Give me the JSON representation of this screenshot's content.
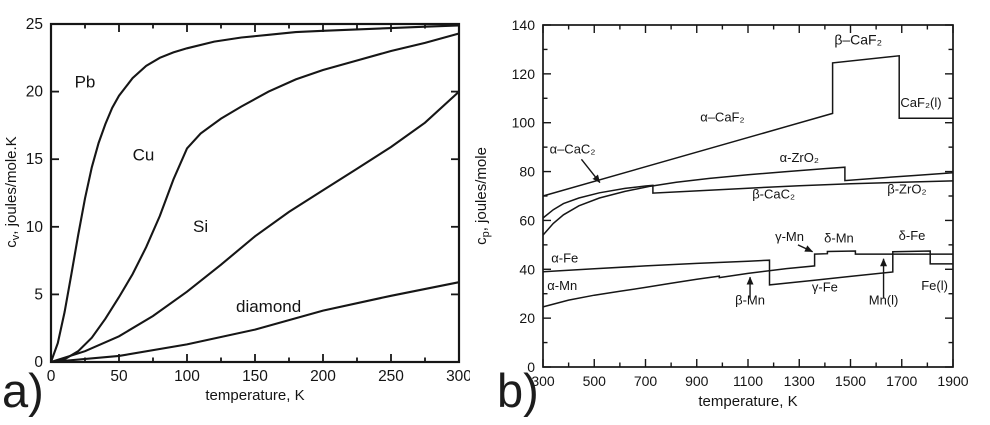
{
  "figure": {
    "background": "#ffffff",
    "ink_color": "#141414"
  },
  "panel_labels": {
    "a": "a)",
    "b": "b)"
  },
  "chart_data": [
    {
      "type": "line",
      "panel": "a",
      "title": "",
      "xlabel": "temperature, K",
      "ylabel": "cv, joules/mole.K",
      "ylabel_sym": "c",
      "ylabel_sub": "v",
      "ylabel_rest": ", joules/mole.K",
      "xlim": [
        0,
        300
      ],
      "ylim": [
        0,
        25
      ],
      "xticks": [
        0,
        50,
        100,
        150,
        200,
        250,
        300
      ],
      "x_minor": 25,
      "yticks": [
        0,
        5,
        10,
        15,
        20,
        25
      ],
      "y_minor": 0,
      "grid": false,
      "legend": "labels-on-curves",
      "line_color": "#161616",
      "frame_w": 2.2,
      "series_w": 2.1,
      "tick_w": 1.8,
      "tick_fs": 15.5,
      "ann_fs": 17,
      "series": [
        {
          "name": "Pb",
          "points": [
            [
              0,
              0
            ],
            [
              5,
              1.4
            ],
            [
              10,
              3.7
            ],
            [
              15,
              6.5
            ],
            [
              20,
              9.4
            ],
            [
              25,
              12.1
            ],
            [
              30,
              14.4
            ],
            [
              35,
              16.2
            ],
            [
              40,
              17.6
            ],
            [
              45,
              18.8
            ],
            [
              50,
              19.7
            ],
            [
              60,
              21.0
            ],
            [
              70,
              21.9
            ],
            [
              80,
              22.5
            ],
            [
              90,
              22.9
            ],
            [
              100,
              23.2
            ],
            [
              120,
              23.7
            ],
            [
              140,
              24.0
            ],
            [
              160,
              24.2
            ],
            [
              180,
              24.4
            ],
            [
              200,
              24.5
            ],
            [
              225,
              24.6
            ],
            [
              250,
              24.7
            ],
            [
              275,
              24.8
            ],
            [
              300,
              24.9
            ]
          ]
        },
        {
          "name": "Cu",
          "points": [
            [
              0,
              0
            ],
            [
              10,
              0.2
            ],
            [
              20,
              0.8
            ],
            [
              30,
              1.8
            ],
            [
              40,
              3.2
            ],
            [
              50,
              4.8
            ],
            [
              60,
              6.5
            ],
            [
              70,
              8.5
            ],
            [
              80,
              10.8
            ],
            [
              90,
              13.5
            ],
            [
              100,
              15.8
            ],
            [
              110,
              16.9
            ],
            [
              125,
              18.0
            ],
            [
              140,
              18.9
            ],
            [
              160,
              20.0
            ],
            [
              180,
              20.9
            ],
            [
              200,
              21.6
            ],
            [
              225,
              22.3
            ],
            [
              250,
              23.0
            ],
            [
              275,
              23.6
            ],
            [
              300,
              24.3
            ]
          ]
        },
        {
          "name": "Si",
          "points": [
            [
              0,
              0
            ],
            [
              25,
              0.8
            ],
            [
              50,
              1.9
            ],
            [
              75,
              3.4
            ],
            [
              100,
              5.2
            ],
            [
              125,
              7.2
            ],
            [
              150,
              9.3
            ],
            [
              175,
              11.1
            ],
            [
              200,
              12.7
            ],
            [
              225,
              14.3
            ],
            [
              250,
              15.9
            ],
            [
              275,
              17.7
            ],
            [
              300,
              20.0
            ]
          ]
        },
        {
          "name": "diamond",
          "points": [
            [
              0,
              0
            ],
            [
              50,
              0.45
            ],
            [
              100,
              1.3
            ],
            [
              150,
              2.4
            ],
            [
              200,
              3.8
            ],
            [
              250,
              4.9
            ],
            [
              300,
              5.9
            ]
          ]
        }
      ],
      "annotations": [
        {
          "id": "Pb",
          "text": "Pb",
          "x": 25,
          "y": 20.3
        },
        {
          "id": "Cu",
          "text": "Cu",
          "x": 68,
          "y": 14.9
        },
        {
          "id": "Si",
          "text": "Si",
          "x": 110,
          "y": 9.6
        },
        {
          "id": "diamond",
          "text": "diamond",
          "x": 160,
          "y": 3.7
        }
      ],
      "arrows": []
    },
    {
      "type": "line",
      "panel": "b",
      "title": "",
      "xlabel": "temperature, K",
      "ylabel": "cp, joules/mole",
      "ylabel_sym": "c",
      "ylabel_sub": "p",
      "ylabel_rest": ", joules/mole",
      "xlim": [
        300,
        1900
      ],
      "ylim": [
        0,
        140
      ],
      "xticks": [
        300,
        500,
        700,
        900,
        1100,
        1300,
        1500,
        1700,
        1900
      ],
      "x_minor": 100,
      "yticks": [
        0,
        20,
        40,
        60,
        80,
        100,
        120,
        140
      ],
      "y_minor": 10,
      "grid": false,
      "legend": "labels-on-curves",
      "line_color": "#161616",
      "frame_w": 1.7,
      "series_w": 1.5,
      "tick_w": 1.4,
      "tick_fs": 14,
      "ann_fs": 13,
      "series": [
        {
          "name": "CaF2",
          "points": [
            [
              300,
              70
            ],
            [
              1430,
              103.8
            ],
            [
              1430,
              124.5
            ],
            [
              1690,
              127.4
            ],
            [
              1690,
              101.8
            ],
            [
              1900,
              101.8
            ]
          ]
        },
        {
          "name": "ZrO2",
          "points": [
            [
              300,
              54
            ],
            [
              340,
              58.8
            ],
            [
              380,
              62.3
            ],
            [
              440,
              66.0
            ],
            [
              520,
              69.2
            ],
            [
              620,
              71.9
            ],
            [
              720,
              74.0
            ],
            [
              820,
              75.6
            ],
            [
              950,
              77.2
            ],
            [
              1100,
              78.7
            ],
            [
              1250,
              80.0
            ],
            [
              1400,
              81.2
            ],
            [
              1478,
              81.8
            ],
            [
              1478,
              76.3
            ],
            [
              1600,
              77.3
            ],
            [
              1750,
              78.4
            ],
            [
              1900,
              79.5
            ]
          ]
        },
        {
          "name": "CaC2",
          "points": [
            [
              300,
              61
            ],
            [
              340,
              64.4
            ],
            [
              380,
              66.9
            ],
            [
              440,
              69.2
            ],
            [
              520,
              71.3
            ],
            [
              620,
              73.1
            ],
            [
              700,
              74.1
            ],
            [
              729,
              74.4
            ],
            [
              729,
              71.2
            ],
            [
              900,
              72.1
            ],
            [
              1100,
              73.2
            ],
            [
              1300,
              74.2
            ],
            [
              1500,
              75.0
            ],
            [
              1700,
              75.6
            ],
            [
              1900,
              76.2
            ]
          ]
        },
        {
          "name": "Fe",
          "points": [
            [
              300,
              39
            ],
            [
              500,
              40.2
            ],
            [
              700,
              41.4
            ],
            [
              900,
              42.4
            ],
            [
              1100,
              43.3
            ],
            [
              1184,
              43.7
            ],
            [
              1184,
              33.6
            ],
            [
              1350,
              35.4
            ],
            [
              1500,
              37.1
            ],
            [
              1665,
              38.9
            ],
            [
              1665,
              47.2
            ],
            [
              1811,
              47.5
            ],
            [
              1811,
              42.2
            ],
            [
              1900,
              42.2
            ]
          ]
        },
        {
          "name": "Mn",
          "points": [
            [
              300,
              24.6
            ],
            [
              400,
              27.4
            ],
            [
              500,
              29.4
            ],
            [
              600,
              31.0
            ],
            [
              700,
              32.6
            ],
            [
              800,
              34.3
            ],
            [
              900,
              35.9
            ],
            [
              988,
              37.2
            ],
            [
              988,
              36.6
            ],
            [
              1100,
              38.3
            ],
            [
              1250,
              40.3
            ],
            [
              1360,
              41.4
            ],
            [
              1360,
              46.2
            ],
            [
              1410,
              46.4
            ],
            [
              1410,
              47.3
            ],
            [
              1519,
              47.5
            ],
            [
              1519,
              46.2
            ],
            [
              1900,
              46.2
            ]
          ]
        }
      ],
      "annotations": [
        {
          "id": "alpha-CaF2",
          "text": "α–CaF₂",
          "x": 1000,
          "y": 100.5
        },
        {
          "id": "beta-CaF2",
          "text": "β–CaF₂",
          "x": 1530,
          "y": 132,
          "fs": 14
        },
        {
          "id": "CaF2-liquid",
          "text": "CaF₂(l)",
          "x": 1775,
          "y": 106.5
        },
        {
          "id": "alpha-CaC2",
          "text": "α–CaC₂",
          "x": 415,
          "y": 87.5
        },
        {
          "id": "alpha-ZrO2",
          "text": "α-ZrO₂",
          "x": 1300,
          "y": 84
        },
        {
          "id": "beta-CaC2",
          "text": "β-CaC₂",
          "x": 1200,
          "y": 69
        },
        {
          "id": "beta-ZrO2",
          "text": "β-ZrO₂",
          "x": 1720,
          "y": 71
        },
        {
          "id": "alpha-Fe",
          "text": "α-Fe",
          "x": 385,
          "y": 42.8
        },
        {
          "id": "alpha-Mn",
          "text": "α-Mn",
          "x": 375,
          "y": 31.5
        },
        {
          "id": "gamma-Mn",
          "text": "γ-Mn",
          "x": 1262,
          "y": 51.5
        },
        {
          "id": "delta-Mn",
          "text": "δ-Mn",
          "x": 1455,
          "y": 51
        },
        {
          "id": "delta-Fe",
          "text": "δ-Fe",
          "x": 1740,
          "y": 52
        },
        {
          "id": "gamma-Fe",
          "text": "γ-Fe",
          "x": 1400,
          "y": 31
        },
        {
          "id": "beta-Mn",
          "text": "β-Mn",
          "x": 1108,
          "y": 25.5
        },
        {
          "id": "Mn-liquid",
          "text": "Mn(l)",
          "x": 1629,
          "y": 25.5
        },
        {
          "id": "Fe-liquid",
          "text": "Fe(l)",
          "x": 1828,
          "y": 31.5
        }
      ],
      "arrows": [
        {
          "id": "alpha-CaC2-arrow",
          "from": [
            450,
            85
          ],
          "to": [
            522,
            75.5
          ]
        },
        {
          "id": "gamma-Mn-arrow",
          "from": [
            1295,
            50
          ],
          "to": [
            1352,
            47.2
          ]
        },
        {
          "id": "beta-Mn-arrow",
          "from": [
            1108,
            28
          ],
          "to": [
            1108,
            36.8
          ]
        },
        {
          "id": "Mn-liquid-arrow",
          "from": [
            1629,
            28
          ],
          "to": [
            1629,
            44.3
          ]
        }
      ]
    }
  ]
}
